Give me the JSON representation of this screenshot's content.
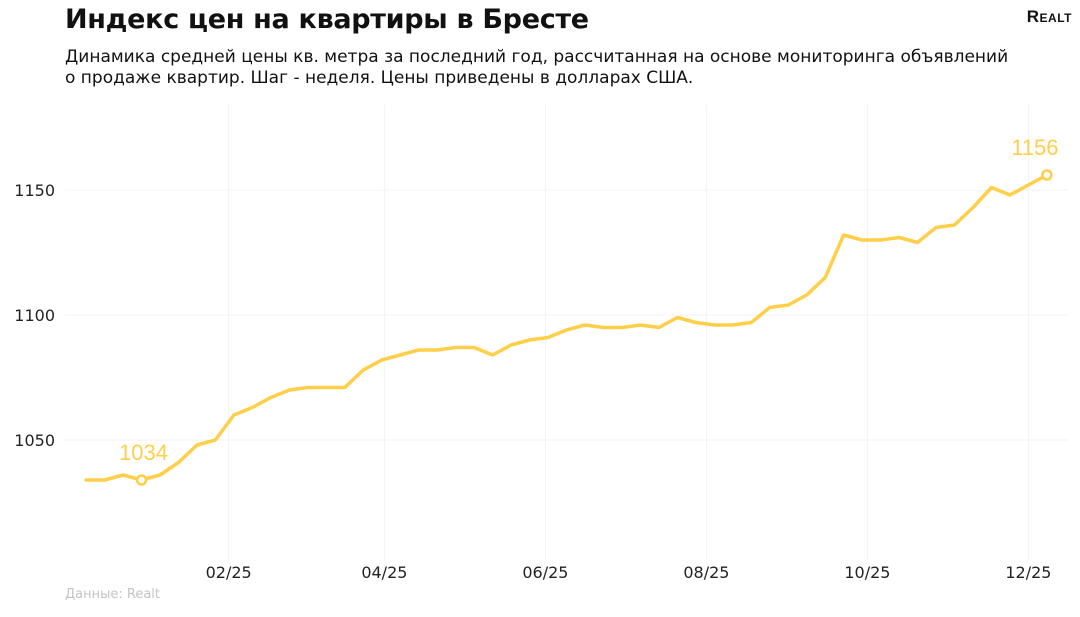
{
  "header": {
    "title": "Индекс цен на квартиры в Бресте",
    "subtitle": "Динамика средней цены кв. метра за последний год, рассчитанная на основе мониторинга объявлений о продаже квартир. Шаг - неделя. Цены приведены в долларах США.",
    "logo": "Realt"
  },
  "footer": {
    "source": "Данные: Realt"
  },
  "chart_data": {
    "type": "line",
    "title": "Индекс цен на квартиры в Бресте",
    "xlabel": "",
    "ylabel": "",
    "ylim": [
      1002,
      1184
    ],
    "xlim": [
      "2024-12-01",
      "2025-12-16"
    ],
    "yticks": [
      1050,
      1100,
      1150
    ],
    "xticks": [
      {
        "date": "2025-02-01",
        "label": "02/25"
      },
      {
        "date": "2025-04-01",
        "label": "04/25"
      },
      {
        "date": "2025-06-01",
        "label": "06/25"
      },
      {
        "date": "2025-08-01",
        "label": "08/25"
      },
      {
        "date": "2025-10-01",
        "label": "10/25"
      },
      {
        "date": "2025-12-01",
        "label": "12/25"
      }
    ],
    "grid": true,
    "line_color": "#FFCF4A",
    "x": [
      "2024-12-09",
      "2024-12-16",
      "2024-12-23",
      "2024-12-30",
      "2025-01-06",
      "2025-01-13",
      "2025-01-20",
      "2025-01-27",
      "2025-02-03",
      "2025-02-10",
      "2025-02-17",
      "2025-02-24",
      "2025-03-03",
      "2025-03-10",
      "2025-03-17",
      "2025-03-24",
      "2025-03-31",
      "2025-04-07",
      "2025-04-14",
      "2025-04-21",
      "2025-04-28",
      "2025-05-05",
      "2025-05-12",
      "2025-05-19",
      "2025-05-26",
      "2025-06-02",
      "2025-06-09",
      "2025-06-16",
      "2025-06-23",
      "2025-06-30",
      "2025-07-07",
      "2025-07-14",
      "2025-07-21",
      "2025-07-28",
      "2025-08-04",
      "2025-08-11",
      "2025-08-18",
      "2025-08-25",
      "2025-09-01",
      "2025-09-08",
      "2025-09-15",
      "2025-09-22",
      "2025-09-29",
      "2025-10-06",
      "2025-10-13",
      "2025-10-20",
      "2025-10-27",
      "2025-11-03",
      "2025-11-10",
      "2025-11-17",
      "2025-11-24",
      "2025-12-01",
      "2025-12-08"
    ],
    "values": [
      1034,
      1034,
      1036,
      1034,
      1036,
      1041,
      1048,
      1050,
      1060,
      1063,
      1067,
      1070,
      1071,
      1071,
      1071,
      1078,
      1082,
      1084,
      1086,
      1086,
      1087,
      1087,
      1084,
      1088,
      1090,
      1091,
      1094,
      1096,
      1095,
      1095,
      1096,
      1095,
      1099,
      1097,
      1096,
      1096,
      1097,
      1103,
      1104,
      1108,
      1115,
      1132,
      1130,
      1130,
      1131,
      1129,
      1135,
      1136,
      1143,
      1151,
      1148,
      1152,
      1156
    ],
    "annotations": [
      {
        "date": "2024-12-30",
        "value": 1034,
        "label": "1034"
      },
      {
        "date": "2025-12-08",
        "value": 1156,
        "label": "1156"
      }
    ]
  }
}
